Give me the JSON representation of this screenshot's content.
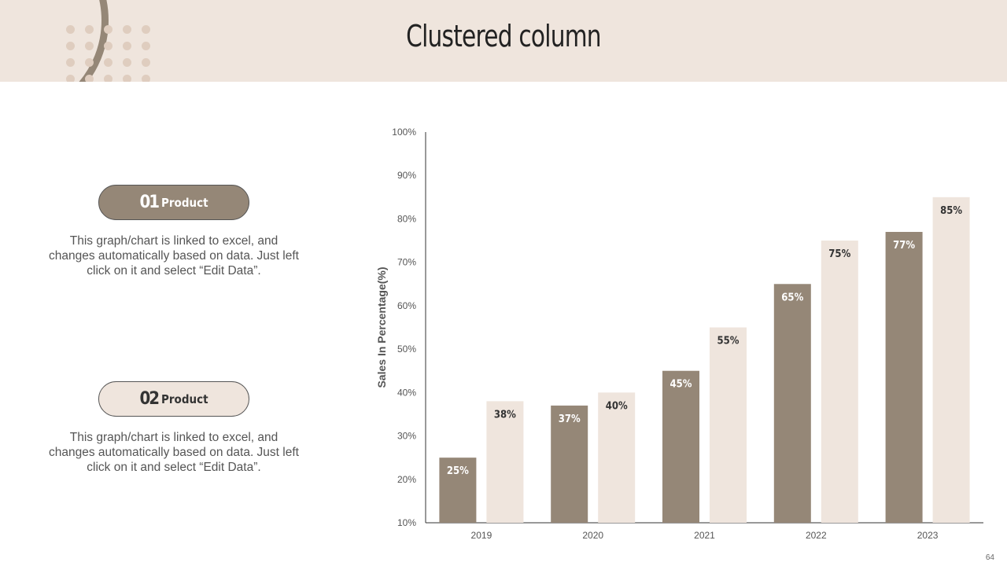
{
  "slide": {
    "title": "Clustered column",
    "page_number": "64"
  },
  "products": [
    {
      "number": "01",
      "label": "Product",
      "description": "This graph/chart is linked to excel, and changes automatically based on data. Just left click on it and select “Edit Data”."
    },
    {
      "number": "02",
      "label": "Product",
      "description": "This graph/chart is linked to excel, and changes automatically based on data. Just left click on it and select “Edit Data”."
    }
  ],
  "colors": {
    "series_1": "#958777",
    "series_2": "#efe5dd",
    "header_bg": "#efe5dd"
  },
  "chart_data": {
    "type": "bar",
    "categories": [
      "2019",
      "2020",
      "2021",
      "2022",
      "2023"
    ],
    "series": [
      {
        "values": [
          25,
          37,
          45,
          65,
          77
        ],
        "labels": [
          "25%",
          "37%",
          "45%",
          "65%",
          "77%"
        ]
      },
      {
        "values": [
          38,
          40,
          55,
          75,
          85
        ],
        "labels": [
          "38%",
          "40%",
          "55%",
          "75%",
          "85%"
        ]
      }
    ],
    "ylabel": "Sales In Percentage(%)",
    "ylim": [
      10,
      100
    ],
    "y_ticks": [
      10,
      20,
      30,
      40,
      50,
      60,
      70,
      80,
      90,
      100
    ],
    "y_tick_labels": [
      "10%",
      "20%",
      "30%",
      "40%",
      "50%",
      "60%",
      "70%",
      "80%",
      "90%",
      "100%"
    ],
    "grid": false,
    "legend": "none"
  }
}
